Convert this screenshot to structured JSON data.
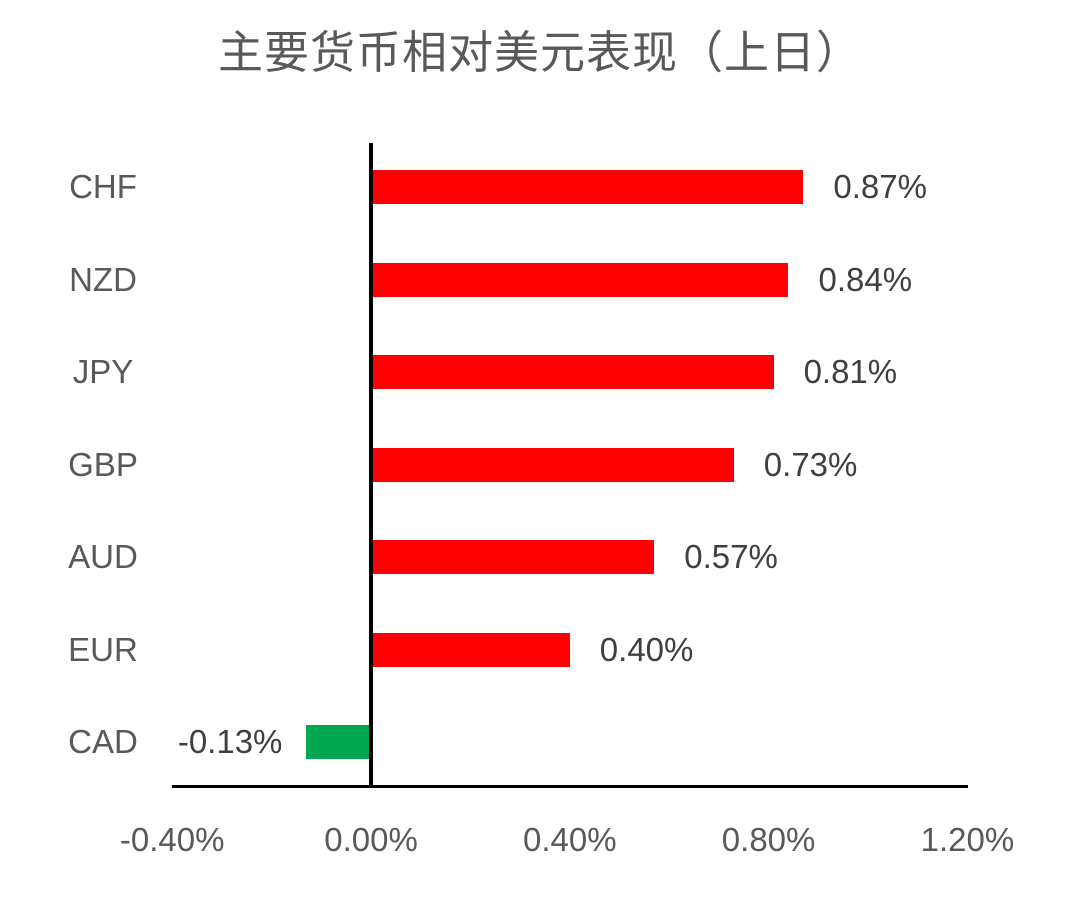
{
  "chart_data": {
    "type": "bar",
    "orientation": "horizontal",
    "title": "主要货币相对美元表现（上日）",
    "categories": [
      "CHF",
      "NZD",
      "JPY",
      "GBP",
      "AUD",
      "EUR",
      "CAD"
    ],
    "values": [
      0.87,
      0.84,
      0.81,
      0.73,
      0.57,
      0.4,
      -0.13
    ],
    "data_labels": [
      "0.87%",
      "0.84%",
      "0.81%",
      "0.73%",
      "0.57%",
      "0.40%",
      "-0.13%"
    ],
    "x_tick_labels": [
      "-0.40%",
      "0.00%",
      "0.40%",
      "0.80%",
      "1.20%"
    ],
    "x_tick_values": [
      -0.4,
      0.0,
      0.4,
      0.8,
      1.2
    ],
    "xlim": [
      -0.4,
      1.2
    ],
    "xlabel": "",
    "ylabel": "",
    "grid": false,
    "legend": false,
    "colors": {
      "positive_bar": "#FF0000",
      "negative_bar": "#00A650",
      "title_text": "#595959",
      "category_label": "#595959",
      "value_label": "#3F3F3F",
      "axis_tick_label": "#595959",
      "axis_line": "#000000"
    }
  }
}
